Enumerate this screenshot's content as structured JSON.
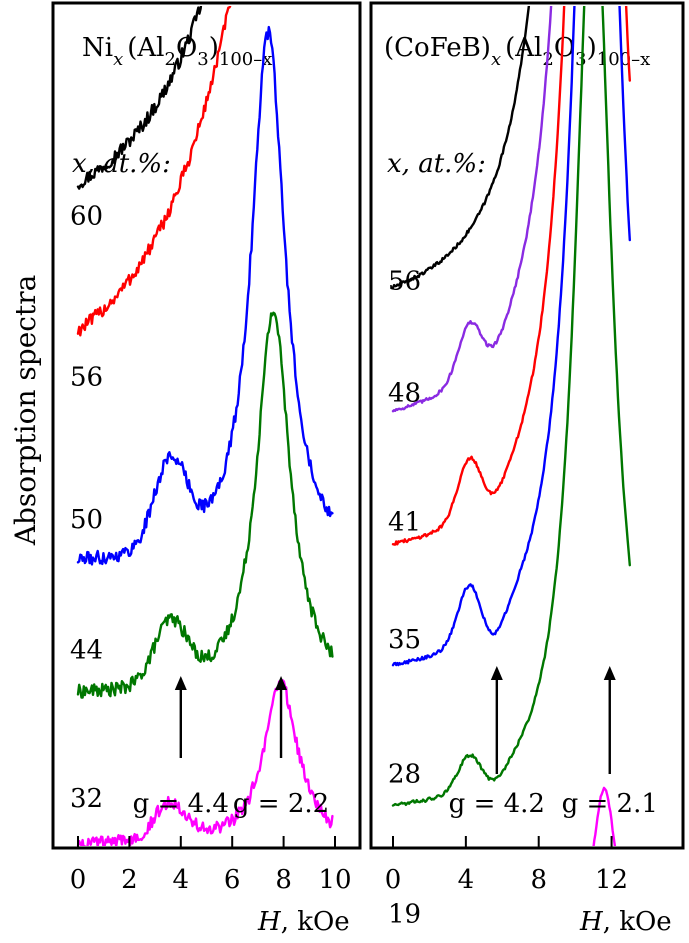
{
  "ylabel": "Absorption spectra",
  "colors": {
    "black": "#000000",
    "red": "#ff0000",
    "blue": "#0000ff",
    "green": "#007700",
    "purple": "#8a2be2",
    "magenta": "#ff00ff"
  },
  "chart_data": [
    {
      "type": "line",
      "title_parts": [
        "Ni",
        "x",
        "(Al",
        "2",
        "O",
        "3",
        ")",
        "100–x"
      ],
      "legend_heading": "x, at.%:",
      "xlabel_var": "H",
      "xlabel_unit": ", kOe",
      "xlim": [
        0,
        10
      ],
      "xticks": [
        "0",
        "2",
        "4",
        "6",
        "8",
        "10"
      ],
      "series": [
        {
          "name": "60",
          "color": "black",
          "baseline": 0.82,
          "peak": 0.0,
          "res": [
            8.9,
            3.2,
            1.1
          ],
          "wing": 0.0
        },
        {
          "name": "56",
          "color": "red",
          "baseline": 0.56,
          "peak": 0.0,
          "res": [
            8.6,
            3.4,
            1.1
          ],
          "wing": 0.0
        },
        {
          "name": "50",
          "color": "blue",
          "baseline": 0.33,
          "peak": 0.14,
          "res": [
            7.4,
            0.8,
            0.86
          ],
          "wing": 0.0
        },
        {
          "name": "44",
          "color": "green",
          "baseline": 0.12,
          "peak": 0.1,
          "res": [
            7.6,
            0.8,
            0.62
          ],
          "wing": 0.0
        },
        {
          "name": "32",
          "color": "magenta",
          "baseline": -0.12,
          "peak": 0.06,
          "res": [
            7.9,
            0.8,
            0.26
          ],
          "wing": 0.0
        }
      ],
      "low_field_peak_center": 3.6,
      "annotations": [
        {
          "label": "g = 4.4",
          "x": 4.0
        },
        {
          "label": "g = 2.2",
          "x": 7.9
        }
      ]
    },
    {
      "type": "line",
      "title_parts": [
        "(CoFeB)",
        "x",
        "(Al",
        "2",
        "O",
        "3",
        ")",
        "100–x"
      ],
      "legend_heading": "x, at.%:",
      "xlabel_var": "H",
      "xlabel_unit": ", kOe",
      "xlim": [
        0,
        14
      ],
      "xticks": [
        "0",
        "4",
        "8",
        "12"
      ],
      "series": [
        {
          "name": "56",
          "color": "black",
          "baseline": 0.78,
          "peak": 0.0,
          "res": [
            10.9,
            1.4,
            4.0
          ],
          "wing": 0.0
        },
        {
          "name": "48",
          "color": "purple",
          "baseline": 0.58,
          "peak": 0.09,
          "res": [
            11.0,
            1.3,
            3.2
          ],
          "wing": 0.05
        },
        {
          "name": "41",
          "color": "red",
          "baseline": 0.35,
          "peak": 0.1,
          "res": [
            11.1,
            1.3,
            2.7
          ],
          "wing": 0.06
        },
        {
          "name": "35",
          "color": "blue",
          "baseline": 0.14,
          "peak": 0.1,
          "res": [
            11.2,
            1.3,
            2.3
          ],
          "wing": 0.1
        },
        {
          "name": "28",
          "color": "green",
          "baseline": -0.1,
          "peak": 0.06,
          "res": [
            11.0,
            1.2,
            1.7
          ],
          "wing": 0.05
        },
        {
          "name": "19",
          "color": "magenta",
          "baseline": -0.35,
          "peak": 0.0,
          "res": [
            11.6,
            0.8,
            0.3
          ],
          "wing": 0.0
        }
      ],
      "low_field_peak_center": 4.2,
      "annotations": [
        {
          "label": "g = 4.2",
          "x": 5.7
        },
        {
          "label": "g = 2.1",
          "x": 11.9
        }
      ]
    }
  ]
}
